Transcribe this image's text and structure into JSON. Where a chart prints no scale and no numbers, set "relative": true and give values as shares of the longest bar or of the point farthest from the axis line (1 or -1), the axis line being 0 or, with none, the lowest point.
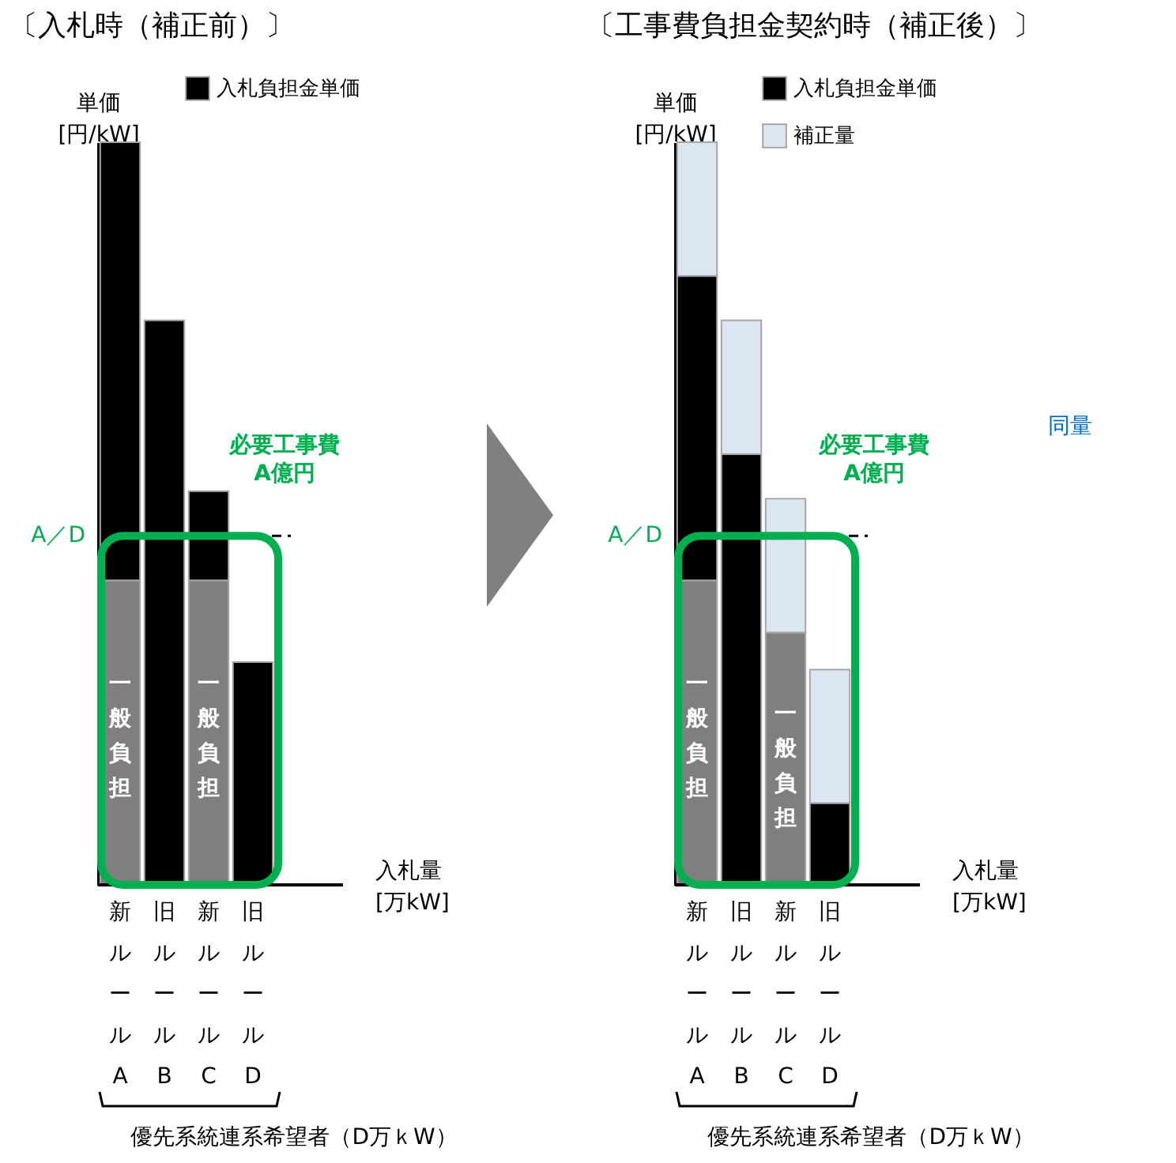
{
  "chart_data": [
    {
      "type": "bar",
      "stacked": true,
      "relative": true,
      "title": "〔入札時（補正前）〕",
      "ylabel": "単価\n[円/kW]",
      "xlabel": "入札量\n[万kW]",
      "legend": "top",
      "categories": [
        "新ルールA",
        "旧ルールB",
        "新ルールC",
        "旧ルールD"
      ],
      "series": [
        {
          "color": "#7f7f7f",
          "values": [
            0.41,
            null,
            0.41,
            null
          ]
        },
        {
          "name": "入札負担金単価",
          "color": "#000000",
          "values": [
            0.59,
            0.76,
            0.12,
            0.3
          ]
        }
      ],
      "ref_lines": [
        {
          "axis": "y",
          "value": 0.47,
          "label": "A／D",
          "color": "#000000",
          "line_style": "dashed"
        }
      ],
      "annotations": [
        "一般負担",
        "一般負担",
        "必要工事費\nA億円",
        "優先系統連系希望者（D万ｋW）"
      ]
    },
    {
      "type": "bar",
      "stacked": true,
      "relative": true,
      "title": "〔工事費負担金契約時（補正後）〕",
      "ylabel": "単価\n[円/kW]",
      "xlabel": "入札量\n[万kW]",
      "legend": "top",
      "categories": [
        "新ルールA",
        "旧ルールB",
        "新ルールC",
        "旧ルールD"
      ],
      "series": [
        {
          "color": "#7f7f7f",
          "values": [
            0.41,
            null,
            0.34,
            null
          ]
        },
        {
          "name": "入札負担金単価",
          "color": "#000000",
          "values": [
            0.41,
            0.58,
            null,
            0.11
          ]
        },
        {
          "name": "補正量",
          "color": "#dce6f2",
          "values": [
            0.18,
            0.18,
            0.18,
            0.18
          ]
        }
      ],
      "ref_lines": [
        {
          "axis": "y",
          "value": 0.47,
          "label": "A／D",
          "color": "#000000",
          "line_style": "dashed"
        }
      ],
      "annotations": [
        "一般負担",
        "一般負担",
        "必要工事費\nA億円",
        "同量",
        "優先系統連系希望者（D万ｋW）"
      ]
    }
  ]
}
